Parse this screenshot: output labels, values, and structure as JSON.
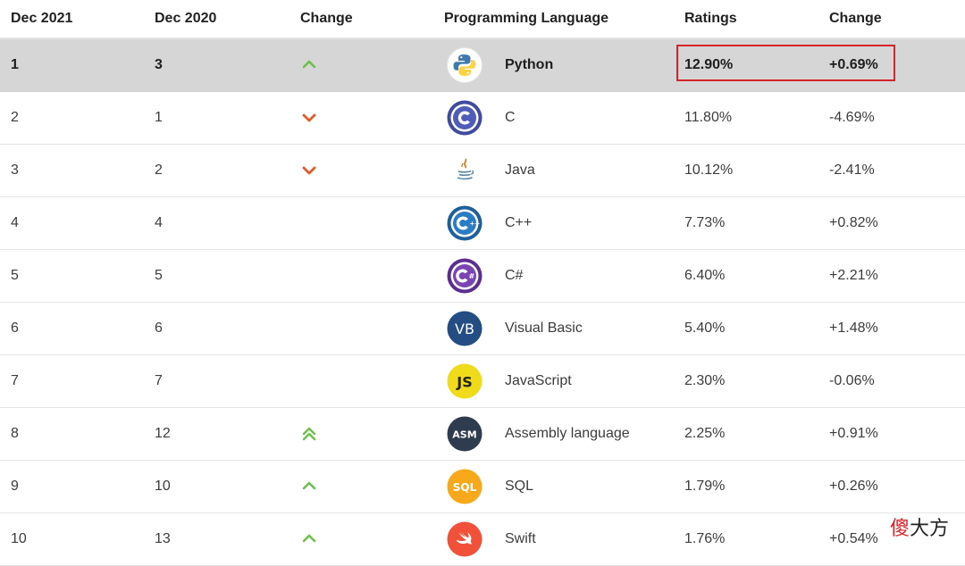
{
  "header": {
    "col_current": "Dec 2021",
    "col_prev": "Dec 2020",
    "col_change": "Change",
    "col_language": "Programming Language",
    "col_ratings": "Ratings",
    "col_ratings_change": "Change"
  },
  "rows": [
    {
      "rank": "1",
      "prev": "3",
      "trend": "up",
      "lang": "Python",
      "rating": "12.90%",
      "change": "+0.69%",
      "icon": "python-logo-icon"
    },
    {
      "rank": "2",
      "prev": "1",
      "trend": "down",
      "lang": "C",
      "rating": "11.80%",
      "change": "-4.69%",
      "icon": "c-logo-icon"
    },
    {
      "rank": "3",
      "prev": "2",
      "trend": "down",
      "lang": "Java",
      "rating": "10.12%",
      "change": "-2.41%",
      "icon": "java-logo-icon"
    },
    {
      "rank": "4",
      "prev": "4",
      "trend": "none",
      "lang": "C++",
      "rating": "7.73%",
      "change": "+0.82%",
      "icon": "cpp-logo-icon"
    },
    {
      "rank": "5",
      "prev": "5",
      "trend": "none",
      "lang": "C#",
      "rating": "6.40%",
      "change": "+2.21%",
      "icon": "csharp-logo-icon"
    },
    {
      "rank": "6",
      "prev": "6",
      "trend": "none",
      "lang": "Visual Basic",
      "rating": "5.40%",
      "change": "+1.48%",
      "icon": "vb-logo-icon"
    },
    {
      "rank": "7",
      "prev": "7",
      "trend": "none",
      "lang": "JavaScript",
      "rating": "2.30%",
      "change": "-0.06%",
      "icon": "javascript-logo-icon"
    },
    {
      "rank": "8",
      "prev": "12",
      "trend": "double-up",
      "lang": "Assembly language",
      "rating": "2.25%",
      "change": "+0.91%",
      "icon": "assembly-logo-icon"
    },
    {
      "rank": "9",
      "prev": "10",
      "trend": "up",
      "lang": "SQL",
      "rating": "1.79%",
      "change": "+0.26%",
      "icon": "sql-logo-icon"
    },
    {
      "rank": "10",
      "prev": "13",
      "trend": "up",
      "lang": "Swift",
      "rating": "1.76%",
      "change": "+0.54%",
      "icon": "swift-logo-icon"
    }
  ],
  "logo_text": {
    "c": "C",
    "vb": "VB",
    "js": "JS",
    "asm": "ASM",
    "sql": "SQL"
  },
  "colors": {
    "up": "#6cc04a",
    "down": "#e05a2a",
    "highlight": "#d6d6d6",
    "callout": "#d6232a"
  },
  "watermark": {
    "first_char": "傻",
    "rest": "大方"
  }
}
